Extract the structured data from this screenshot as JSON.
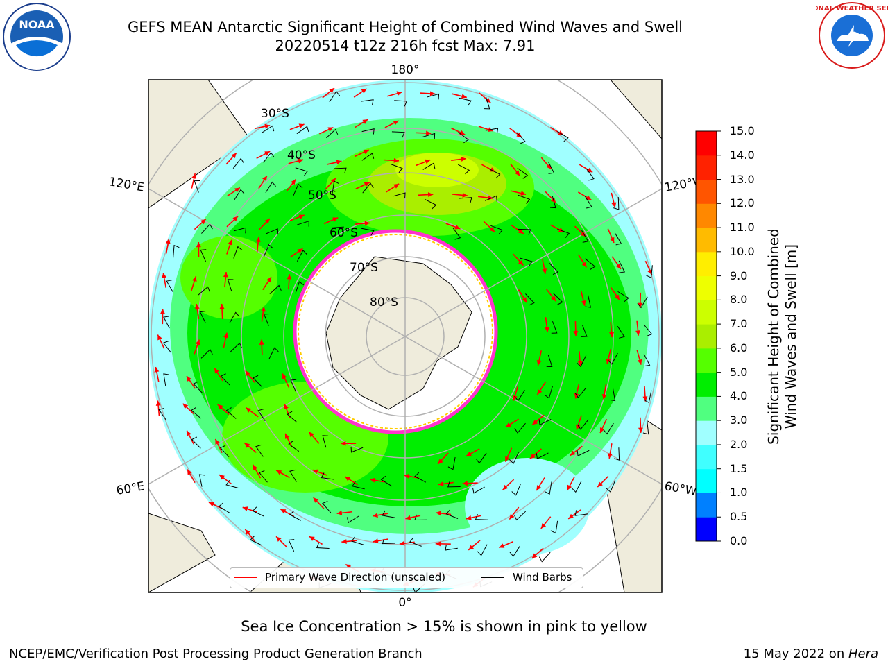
{
  "header": {
    "title_line1": "GEFS MEAN Antarctic Significant Height of Combined Wind Waves and Swell",
    "title_line2": "20220514 t12z 216h fcst   Max: 7.91"
  },
  "logos": {
    "left": "noaa-logo",
    "left_text": "NOAA",
    "right": "nws-logo",
    "right_text": "NATIONAL WEATHER SERVICE"
  },
  "map": {
    "longitude_labels": {
      "top": "180°",
      "bottom": "0°",
      "upper_left": "120°E",
      "lower_left": "60°E",
      "upper_right": "120°W",
      "lower_right": "60°W"
    },
    "latitude_labels": [
      "30°S",
      "40°S",
      "50°S",
      "60°S",
      "70°S",
      "80°S"
    ]
  },
  "legend": {
    "primary_wave": "Primary Wave Direction (unscaled)",
    "wind_barbs": "Wind Barbs",
    "primary_wave_color": "#ff0000",
    "wind_barbs_color": "#000000"
  },
  "colorbar": {
    "label_line1": "Significant Height of Combined",
    "label_line2": "Wind Waves and Swell [m]",
    "ticks": [
      "0.0",
      "0.5",
      "1.0",
      "1.5",
      "2.0",
      "3.0",
      "4.0",
      "5.0",
      "6.0",
      "7.0",
      "8.0",
      "9.0",
      "10.0",
      "11.0",
      "12.0",
      "13.0",
      "14.0",
      "15.0"
    ],
    "colors": [
      "#0000ff",
      "#0080ff",
      "#00ffff",
      "#40ffff",
      "#a0ffff",
      "#50ff80",
      "#00ee00",
      "#55ff00",
      "#aaee00",
      "#ccff00",
      "#eeff00",
      "#ffee00",
      "#ffbb00",
      "#ff8800",
      "#ff5500",
      "#ff2200",
      "#ff0000"
    ]
  },
  "footer": {
    "caption": "Sea Ice Concentration > 15% is shown in pink to yellow",
    "left": "NCEP/EMC/Verification Post Processing Product Generation Branch",
    "right_prefix": "15 May 2022 on ",
    "right_italic": "Hera"
  }
}
